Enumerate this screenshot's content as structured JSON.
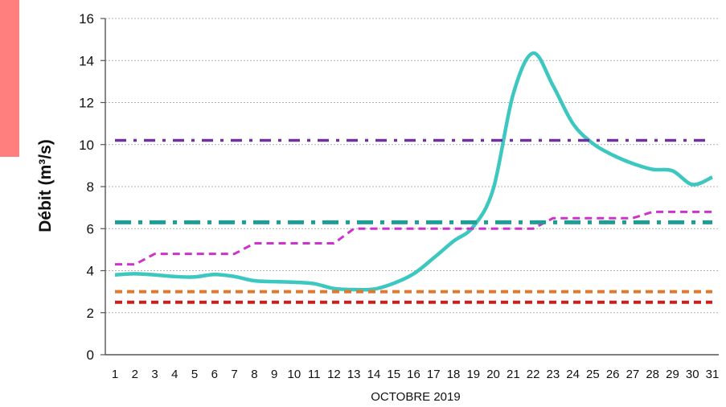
{
  "chart_data": {
    "type": "line",
    "title": "",
    "xlabel": "OCTOBRE 2019",
    "ylabel": "Débit (m³/s)",
    "ylim": [
      0,
      16
    ],
    "yticks": [
      "0",
      "2",
      "4",
      "6",
      "8",
      "10",
      "12",
      "14",
      "16"
    ],
    "categories": [
      "1",
      "2",
      "3",
      "4",
      "5",
      "6",
      "7",
      "8",
      "9",
      "10",
      "11",
      "12",
      "13",
      "14",
      "15",
      "16",
      "17",
      "18",
      "19",
      "20",
      "21",
      "22",
      "23",
      "24",
      "25",
      "26",
      "27",
      "28",
      "29",
      "30",
      "31"
    ],
    "grid": "horizontal dotted",
    "series": [
      {
        "style": "solid",
        "color": "#3cc8c0",
        "values": [
          3.8,
          3.85,
          3.8,
          3.72,
          3.7,
          3.82,
          3.72,
          3.52,
          3.48,
          3.45,
          3.38,
          3.15,
          3.1,
          3.12,
          3.4,
          3.85,
          4.6,
          5.4,
          6.1,
          7.9,
          12.4,
          14.35,
          12.8,
          11.0,
          10.05,
          9.5,
          9.1,
          8.82,
          8.75,
          8.1,
          8.45
        ]
      },
      {
        "style": "dashed",
        "color": "#cc33cc",
        "values": [
          4.3,
          4.3,
          4.8,
          4.8,
          4.8,
          4.8,
          4.8,
          5.3,
          5.3,
          5.3,
          5.3,
          5.3,
          6.0,
          6.0,
          6.0,
          6.0,
          6.0,
          6.0,
          6.0,
          6.0,
          6.0,
          6.0,
          6.5,
          6.5,
          6.5,
          6.5,
          6.5,
          6.8,
          6.8,
          6.8,
          6.8
        ]
      },
      {
        "style": "dash-dot",
        "color": "#7030a0",
        "values": [
          10.2,
          10.2,
          10.2,
          10.2,
          10.2,
          10.2,
          10.2,
          10.2,
          10.2,
          10.2,
          10.2,
          10.2,
          10.2,
          10.2,
          10.2,
          10.2,
          10.2,
          10.2,
          10.2,
          10.2,
          10.2,
          10.2,
          10.2,
          10.2,
          10.2,
          10.2,
          10.2,
          10.2,
          10.2,
          10.2,
          10.2
        ]
      },
      {
        "style": "dash-dot",
        "color": "#1f9e96",
        "values": [
          6.3,
          6.3,
          6.3,
          6.3,
          6.3,
          6.3,
          6.3,
          6.3,
          6.3,
          6.3,
          6.3,
          6.3,
          6.3,
          6.3,
          6.3,
          6.3,
          6.3,
          6.3,
          6.3,
          6.3,
          6.3,
          6.3,
          6.3,
          6.3,
          6.3,
          6.3,
          6.3,
          6.3,
          6.3,
          6.3,
          6.3
        ]
      },
      {
        "style": "dashed",
        "color": "#e07830",
        "values": [
          3.0,
          3.0,
          3.0,
          3.0,
          3.0,
          3.0,
          3.0,
          3.0,
          3.0,
          3.0,
          3.0,
          3.0,
          3.0,
          3.0,
          3.0,
          3.0,
          3.0,
          3.0,
          3.0,
          3.0,
          3.0,
          3.0,
          3.0,
          3.0,
          3.0,
          3.0,
          3.0,
          3.0,
          3.0,
          3.0,
          3.0
        ]
      },
      {
        "style": "dashed",
        "color": "#c8201c",
        "values": [
          2.5,
          2.5,
          2.5,
          2.5,
          2.5,
          2.5,
          2.5,
          2.5,
          2.5,
          2.5,
          2.5,
          2.5,
          2.5,
          2.5,
          2.5,
          2.5,
          2.5,
          2.5,
          2.5,
          2.5,
          2.5,
          2.5,
          2.5,
          2.5,
          2.5,
          2.5,
          2.5,
          2.5,
          2.5,
          2.5,
          2.5
        ]
      }
    ]
  },
  "colors": {
    "accent_block": "#ff7f7f",
    "axis": "#555555",
    "grid": "#b0b0b0"
  }
}
